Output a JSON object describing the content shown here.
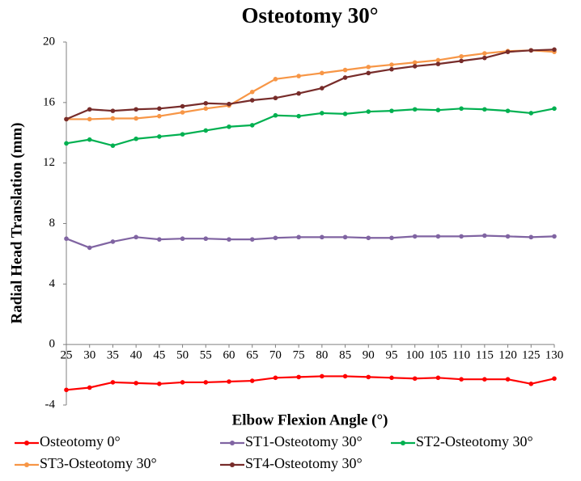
{
  "chart_data": {
    "type": "line",
    "title": "Osteotomy 30°",
    "x_label": "Elbow Flexion Angle (°)",
    "y_label": "Radial Head Translation (mm)",
    "x": [
      25,
      30,
      35,
      40,
      45,
      50,
      55,
      60,
      65,
      70,
      75,
      80,
      85,
      90,
      95,
      100,
      105,
      110,
      115,
      120,
      125,
      130
    ],
    "xlim": [
      25,
      130
    ],
    "xticks": [
      25,
      30,
      35,
      40,
      45,
      50,
      55,
      60,
      65,
      70,
      75,
      80,
      85,
      90,
      95,
      100,
      105,
      110,
      115,
      120,
      125,
      130
    ],
    "ylim": [
      -4,
      20
    ],
    "yticks": [
      -4,
      0,
      4,
      8,
      12,
      16,
      20
    ],
    "grid": false,
    "legend": "bottom",
    "series": [
      {
        "name": "Osteotomy 0°",
        "color": "#ff0000",
        "values": [
          -3.0,
          -2.85,
          -2.5,
          -2.55,
          -2.6,
          -2.5,
          -2.5,
          -2.45,
          -2.4,
          -2.2,
          -2.15,
          -2.1,
          -2.1,
          -2.15,
          -2.2,
          -2.25,
          -2.2,
          -2.3,
          -2.3,
          -2.3,
          -2.6,
          -2.25
        ]
      },
      {
        "name": "ST1-Osteotomy 30°",
        "color": "#8064a2",
        "values": [
          7.0,
          6.4,
          6.8,
          7.1,
          6.95,
          7.0,
          7.0,
          6.95,
          6.95,
          7.05,
          7.1,
          7.1,
          7.1,
          7.05,
          7.05,
          7.15,
          7.15,
          7.15,
          7.2,
          7.15,
          7.1,
          7.15
        ]
      },
      {
        "name": "ST2-Osteotomy 30°",
        "color": "#00b050",
        "values": [
          13.3,
          13.55,
          13.15,
          13.6,
          13.75,
          13.9,
          14.15,
          14.4,
          14.5,
          15.15,
          15.1,
          15.3,
          15.25,
          15.4,
          15.45,
          15.55,
          15.5,
          15.6,
          15.55,
          15.45,
          15.3,
          15.6
        ]
      },
      {
        "name": "ST3-Osteotomy 30°",
        "color": "#f79646",
        "values": [
          14.9,
          14.9,
          14.95,
          14.95,
          15.1,
          15.35,
          15.6,
          15.8,
          16.7,
          17.55,
          17.75,
          17.95,
          18.15,
          18.35,
          18.5,
          18.65,
          18.8,
          19.05,
          19.25,
          19.4,
          19.45,
          19.35
        ]
      },
      {
        "name": "ST4-Osteotomy 30°",
        "color": "#772c2a",
        "values": [
          14.9,
          15.55,
          15.45,
          15.55,
          15.6,
          15.75,
          15.95,
          15.9,
          16.15,
          16.3,
          16.6,
          16.95,
          17.65,
          17.95,
          18.2,
          18.4,
          18.55,
          18.75,
          18.95,
          19.35,
          19.45,
          19.5
        ]
      }
    ]
  }
}
